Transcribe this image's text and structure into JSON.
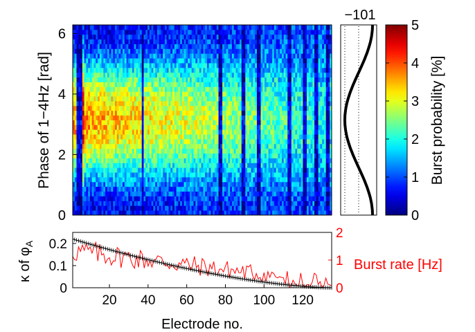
{
  "figure": {
    "heatmap": {
      "type": "heatmap",
      "ylabel": "Phase of 1−4Hz [rad]",
      "yticks": [
        "0",
        "2",
        "4",
        "6"
      ],
      "ylim": [
        0,
        6.283
      ],
      "xlim": [
        1,
        135
      ],
      "n_phase_bins": 40,
      "colormap": "jet"
    },
    "colorbar": {
      "label": "Burst probability [%]",
      "ticks": [
        "0",
        "1",
        "2",
        "3",
        "4",
        "5"
      ],
      "clim": [
        0,
        5
      ]
    },
    "cosine_panel": {
      "ticks": [
        "−1",
        "0",
        "1"
      ],
      "description_value_range": [
        -1,
        1
      ]
    },
    "bottom": {
      "xlabel": "Electrode no.",
      "xticks": [
        "20",
        "40",
        "60",
        "80",
        "100",
        "120"
      ],
      "left_ylabel_prefix": "κ of φ",
      "left_ylabel_sub": "A",
      "left_yticks": [
        "0",
        "0.1",
        "0.2"
      ],
      "left_ylim": [
        0,
        0.25
      ],
      "right_ylabel": "Burst rate [Hz]",
      "right_yticks": [
        "0",
        "1",
        "2"
      ],
      "right_ylim": [
        0,
        2
      ],
      "right_color": "#ff0000"
    }
  },
  "chart_data": {
    "type": "line",
    "x_range": [
      1,
      135
    ],
    "series": [
      {
        "name": "κ of φA",
        "color": "#000000",
        "trend": {
          "start": 0.22,
          "end": 0.0
        }
      },
      {
        "name": "Burst rate [Hz]",
        "color": "#ff0000",
        "trend": {
          "start": 1.2,
          "end": 0.1
        }
      }
    ]
  }
}
